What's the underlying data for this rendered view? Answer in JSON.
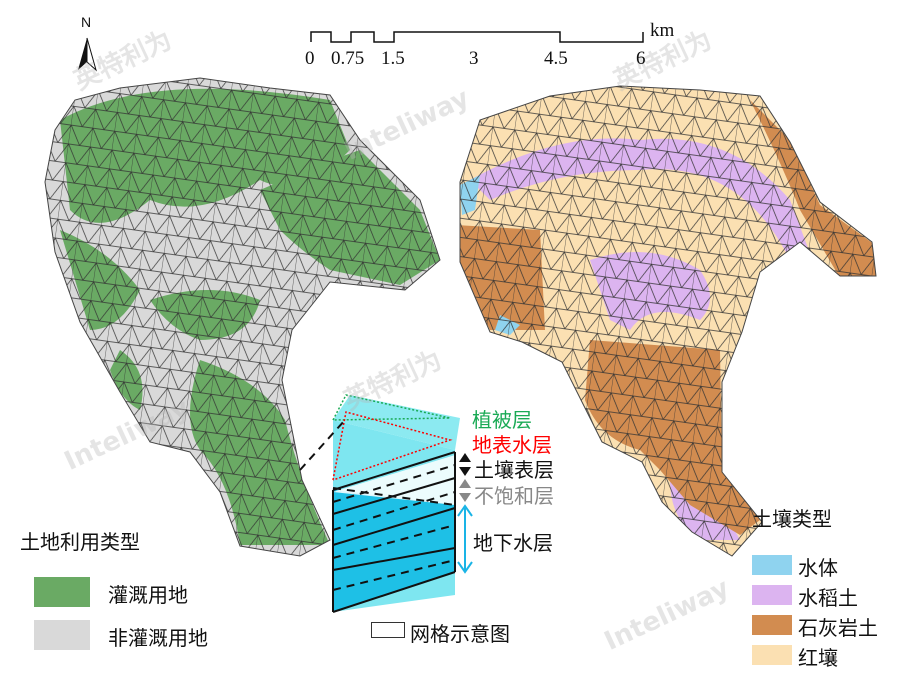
{
  "north_arrow": {
    "label": "N",
    "icon": "north-arrow-icon"
  },
  "scale_bar": {
    "ticks": [
      "0",
      "0.75",
      "1.5",
      "3",
      "4.5",
      "6"
    ],
    "unit": "km"
  },
  "land_use_legend": {
    "title": "土地利用类型",
    "items": [
      {
        "label": "灌溉用地",
        "color": "#6aaa64"
      },
      {
        "label": "非灌溉用地",
        "color": "#d9d9d9"
      }
    ]
  },
  "soil_legend": {
    "title": "土壤类型",
    "items": [
      {
        "label": "水体",
        "color": "#8fd3ef"
      },
      {
        "label": "水稻土",
        "color": "#dcb4f0"
      },
      {
        "label": "石灰岩土",
        "color": "#d28c50"
      },
      {
        "label": "红壤",
        "color": "#fbe0b2"
      }
    ]
  },
  "grid_diagram": {
    "layers": [
      {
        "label": "植被层",
        "color": "#1aaa55"
      },
      {
        "label": "地表水层",
        "color": "#ff0000"
      },
      {
        "label": "土壤表层",
        "color": "#111111"
      },
      {
        "label": "不饱和层",
        "color": "#888888"
      },
      {
        "label": "地下水层",
        "color": "#111111"
      }
    ],
    "legend_label": "网格示意图"
  },
  "watermarks": [
    "英特利为",
    "Inteliway"
  ]
}
